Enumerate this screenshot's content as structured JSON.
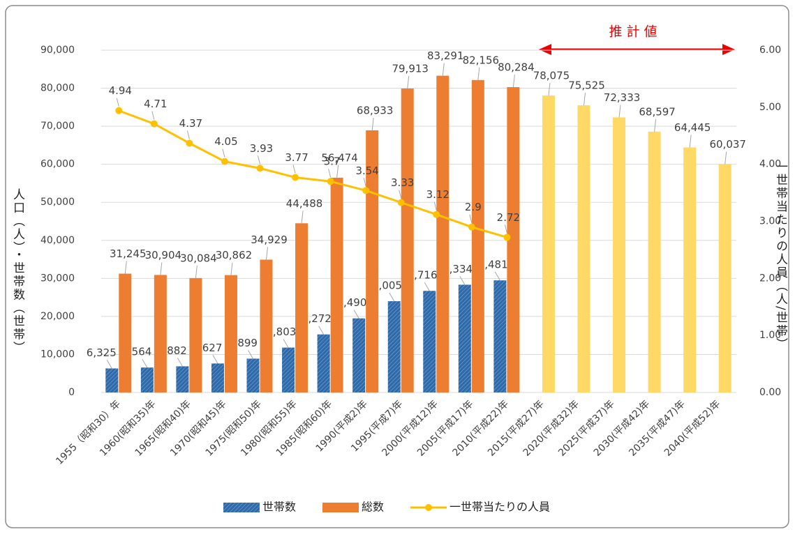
{
  "chart_data": {
    "type": "bar-line",
    "annotation": "推計値",
    "y_label": "人口（人）・世帯数（世帯）",
    "y2_label": "一世帯当たりの人員（人/世帯）",
    "categories": [
      "1955（昭和30）年",
      "1960(昭和35)年",
      "1965(昭和40)年",
      "1970(昭和45)年",
      "1975(昭和50)年",
      "1980(昭和55)年",
      "1985(昭和60)年",
      "1990(平成2)年",
      "1995(平成7)年",
      "2000(平成12)年",
      "2005(平成17)年",
      "2010(平成22)年",
      "2015(平成27)年",
      "2020(平成32)年",
      "2025(平成37)年",
      "2030(平成42)年",
      "2035(平成47)年",
      "2040(平成52)年"
    ],
    "series": [
      {
        "name": "世帯数",
        "kind": "bar",
        "color": "#2e6aa9",
        "values": [
          6325,
          6564,
          6882,
          7627,
          8899,
          11803,
          15272,
          19490,
          24005,
          26716,
          28334,
          29481,
          null,
          null,
          null,
          null,
          null,
          null
        ],
        "value_labels": [
          "6,325",
          "6,564",
          "6,882",
          "7,627",
          "8,899",
          "11,803",
          "15,272",
          "19,490",
          "24,005",
          "26,716",
          "28,334",
          "29,481",
          null,
          null,
          null,
          null,
          null,
          null
        ]
      },
      {
        "name": "総数",
        "kind": "bar",
        "color": "#ed7d31",
        "colors": [
          "#ed7d31",
          "#ed7d31",
          "#ed7d31",
          "#ed7d31",
          "#ed7d31",
          "#ed7d31",
          "#ed7d31",
          "#ed7d31",
          "#ed7d31",
          "#ed7d31",
          "#ed7d31",
          "#ed7d31",
          "#ffd966",
          "#ffd966",
          "#ffd966",
          "#ffd966",
          "#ffd966",
          "#ffd966"
        ],
        "values": [
          31245,
          30904,
          30084,
          30862,
          34929,
          44488,
          56474,
          68933,
          79913,
          83291,
          82156,
          80284,
          78075,
          75525,
          72333,
          68597,
          64445,
          60037
        ],
        "value_labels": [
          "31,245",
          "30,904",
          "30,084",
          "30,862",
          "34,929",
          "44,488",
          "56,474",
          "68,933",
          "79,913",
          "83,291",
          "82,156",
          "80,284",
          "78,075",
          "75,525",
          "72,333",
          "68,597",
          "64,445",
          "60,037"
        ]
      },
      {
        "name": "一世帯当たりの人員",
        "kind": "line",
        "axis": "y2",
        "color": "#ffc000",
        "values": [
          4.94,
          4.71,
          4.37,
          4.05,
          3.93,
          3.77,
          3.7,
          3.54,
          3.33,
          3.12,
          2.9,
          2.72,
          null,
          null,
          null,
          null,
          null,
          null
        ]
      }
    ],
    "ylim": [
      0,
      90000
    ],
    "yticks": [
      0,
      {
        "value": 10000,
        "label": "10,000"
      },
      {
        "value": 20000,
        "label": "20,000"
      },
      {
        "value": 30000,
        "label": "30,000"
      },
      {
        "value": 40000,
        "label": "40,000"
      },
      {
        "value": 50000,
        "label": "50,000"
      },
      {
        "value": 60000,
        "label": "60,000"
      },
      {
        "value": 70000,
        "label": "70,000"
      },
      {
        "value": 80000,
        "label": "80,000"
      },
      {
        "value": 90000,
        "label": "90,000"
      }
    ],
    "y2lim": [
      0,
      6
    ],
    "y2ticks": [
      {
        "value": 0,
        "label": "0.00"
      },
      {
        "value": 1,
        "label": "1.00"
      },
      {
        "value": 2,
        "label": "2.00"
      },
      {
        "value": 3,
        "label": "3.00"
      },
      {
        "value": 4,
        "label": "4.00"
      },
      {
        "value": 5,
        "label": "5.00"
      },
      {
        "value": 6,
        "label": "6.00"
      }
    ],
    "grid": true,
    "legend": "bottom"
  }
}
